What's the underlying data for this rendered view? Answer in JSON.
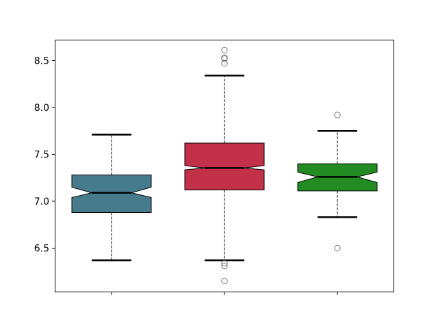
{
  "chart_data": {
    "type": "boxplot",
    "notched": true,
    "title": "",
    "xlabel": "",
    "ylabel": "",
    "ylim": [
      6.03,
      8.72
    ],
    "yticks": [
      "6.5",
      "7.0",
      "7.5",
      "8.0",
      "8.5"
    ],
    "xtick_labels": [
      "",
      "",
      ""
    ],
    "grid": false,
    "boxes": [
      {
        "color": "#457b8d",
        "q1": 6.88,
        "median": 7.09,
        "q3": 7.28,
        "whisker_low": 6.37,
        "whisker_high": 7.71,
        "notch_low": 7.04,
        "notch_high": 7.15,
        "outliers": []
      },
      {
        "color": "#c23049",
        "q1": 7.12,
        "median": 7.355,
        "q3": 7.62,
        "whisker_low": 6.37,
        "whisker_high": 8.34,
        "notch_low": 7.335,
        "notch_high": 7.38,
        "outliers": [
          8.61,
          8.53,
          8.52,
          8.47,
          6.34,
          6.31,
          6.15
        ]
      },
      {
        "color": "#228b22",
        "q1": 7.11,
        "median": 7.26,
        "q3": 7.4,
        "whisker_low": 6.83,
        "whisker_high": 7.75,
        "notch_low": 7.2,
        "notch_high": 7.31,
        "outliers": [
          7.92,
          6.5
        ]
      }
    ]
  }
}
